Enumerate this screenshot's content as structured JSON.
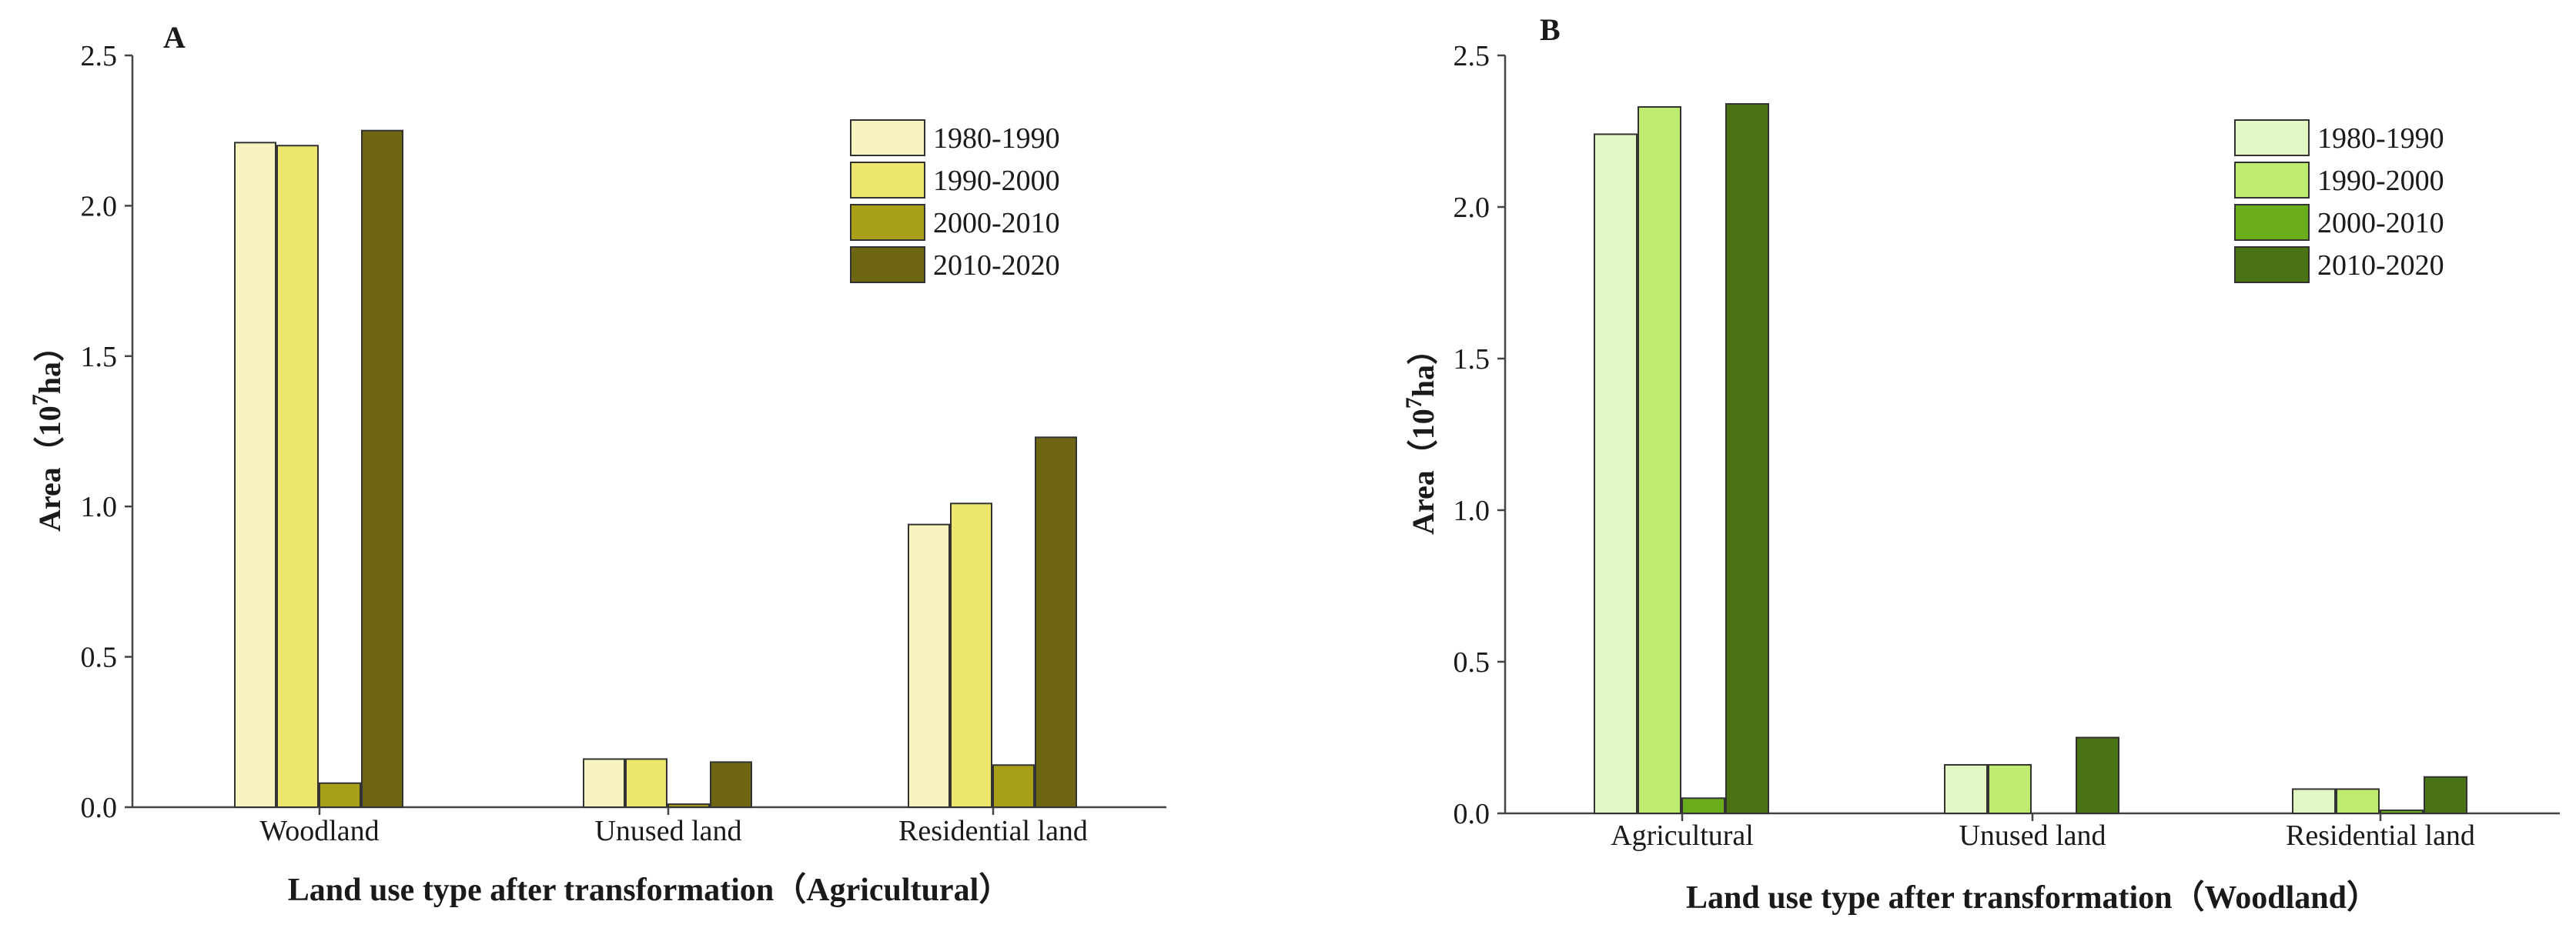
{
  "chart_data": [
    {
      "type": "bar",
      "panel_label": "A",
      "title": "",
      "xlabel": "Land use type after transformation（Agricultural）",
      "ylabel": "Area（10",
      "ylabel_sup": "7",
      "ylabel_end": "ha）",
      "ylim": [
        0,
        2.5
      ],
      "yticks": [
        "0.0",
        "0.5",
        "1.0",
        "1.5",
        "2.0",
        "2.5"
      ],
      "categories": [
        "Woodland",
        "Unused land",
        "Residential land"
      ],
      "legend_position": "top-right",
      "series": [
        {
          "name": "1980-1990",
          "color": "#f7f4c0",
          "values": [
            2.21,
            0.16,
            0.94
          ]
        },
        {
          "name": "1990-2000",
          "color": "#ede66e",
          "values": [
            2.2,
            0.16,
            1.01
          ]
        },
        {
          "name": "2000-2010",
          "color": "#a8a018",
          "values": [
            0.08,
            0.01,
            0.14
          ]
        },
        {
          "name": "2010-2020",
          "color": "#6e6612",
          "values": [
            2.25,
            0.15,
            1.23
          ]
        }
      ]
    },
    {
      "type": "bar",
      "panel_label": "B",
      "title": "",
      "xlabel": "Land use type after transformation（Woodland）",
      "ylabel": "Area（10",
      "ylabel_sup": "7",
      "ylabel_end": "ha）",
      "ylim": [
        0,
        2.5
      ],
      "yticks": [
        "0.0",
        "0.5",
        "1.0",
        "1.5",
        "2.0",
        "2.5"
      ],
      "categories": [
        "Agricultural",
        "Unused land",
        "Residential land"
      ],
      "legend_position": "top-right",
      "series": [
        {
          "name": "1980-1990",
          "color": "#e2f8c4",
          "values": [
            2.24,
            0.16,
            0.08
          ]
        },
        {
          "name": "1990-2000",
          "color": "#bfeb70",
          "values": [
            2.33,
            0.16,
            0.08
          ]
        },
        {
          "name": "2000-2010",
          "color": "#6aad1c",
          "values": [
            0.05,
            0.0,
            0.01
          ]
        },
        {
          "name": "2010-2020",
          "color": "#4a7314",
          "values": [
            2.34,
            0.25,
            0.12
          ]
        }
      ]
    }
  ]
}
